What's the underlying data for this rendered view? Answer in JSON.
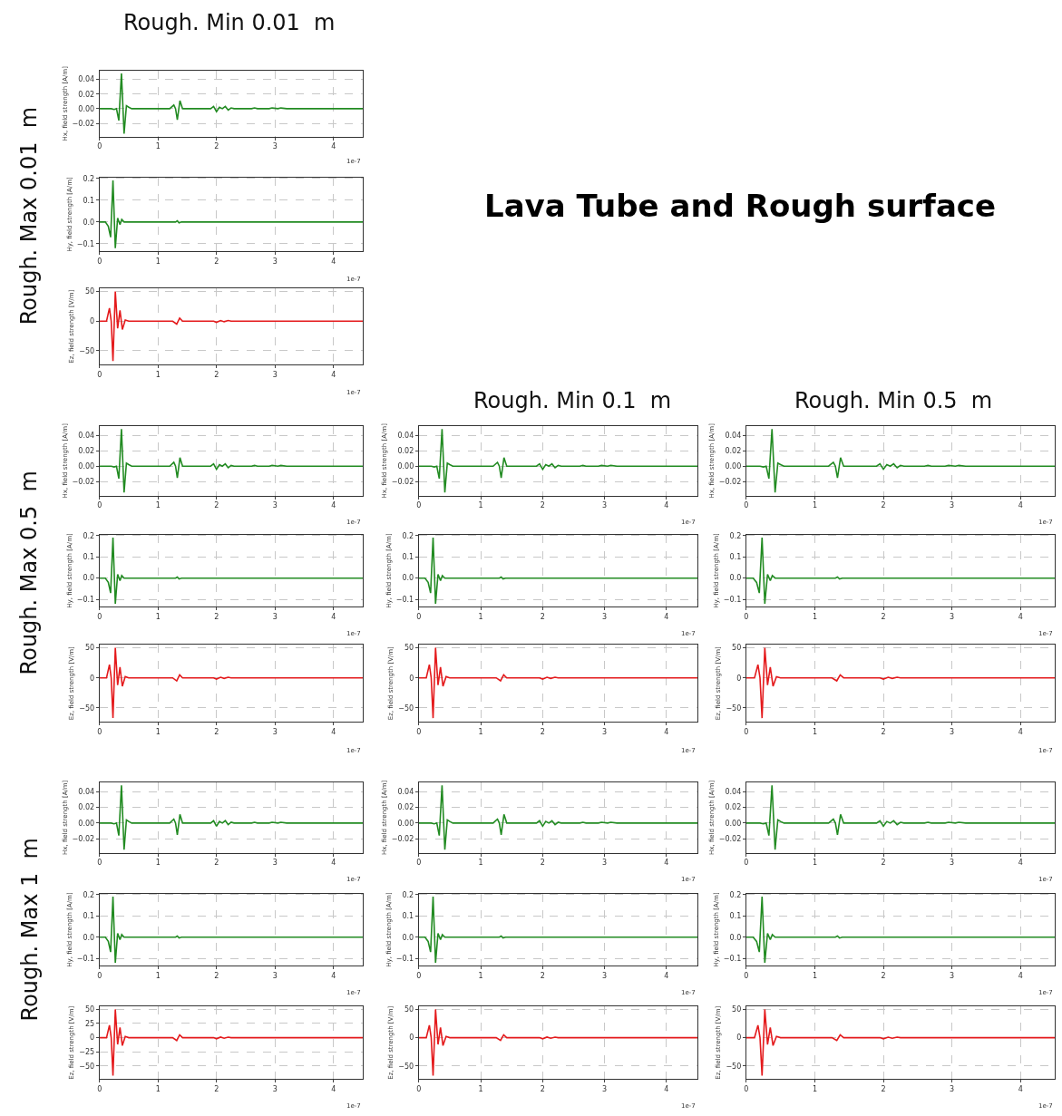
{
  "chart_data": [
    {
      "type": "other",
      "title": "Lava Tube and Rough surface",
      "annotations": [
        "Rough. Min 0.01  m",
        "Rough. Min 0.1  m",
        "Rough. Min 0.5  m",
        "Rough. Max 0.01  m",
        "Rough. Max 0.5  m",
        "Rough. Max 1  m"
      ]
    },
    {
      "type": "line",
      "ylabel": "Hx, field strength [A/m]",
      "x": [
        0,
        0.2,
        0.25,
        0.29,
        0.33,
        0.375,
        0.42,
        0.46,
        0.5,
        0.55,
        1.2,
        1.27,
        1.3,
        1.33,
        1.375,
        1.42,
        1.5,
        1.9,
        1.95,
        2.0,
        2.05,
        2.1,
        2.15,
        2.2,
        2.25,
        2.3,
        2.6,
        2.65,
        2.7,
        2.9,
        2.95,
        3.05,
        3.1,
        3.2,
        4.5
      ],
      "xlim": [
        0,
        4.5
      ],
      "xticks": [
        0,
        1,
        2,
        3,
        4
      ],
      "ylim": [
        -0.038,
        0.052
      ],
      "yticks": [
        {
          "value": -0.02,
          "label": "−0.02"
        },
        {
          "value": 0,
          "label": "0.00"
        },
        {
          "value": 0.02,
          "label": "0.02"
        },
        {
          "value": 0.04,
          "label": "0.04"
        }
      ],
      "grid": true,
      "line_style": "solid",
      "annotations": [
        "1e-7"
      ],
      "series": [
        {
          "color": "#228b22",
          "values": [
            0,
            0,
            -0.001,
            0,
            -0.016,
            0.048,
            -0.034,
            0.004,
            0.002,
            0,
            0,
            0.005,
            0,
            -0.015,
            0.011,
            0,
            0,
            0,
            0.003,
            -0.004,
            0.002,
            0,
            0.003,
            -0.002,
            0.001,
            0,
            0,
            0.001,
            0,
            0,
            0.001,
            0,
            0.001,
            0,
            0
          ]
        }
      ]
    },
    {
      "type": "line",
      "ylabel": "Hy, field strength [A/m]",
      "x": [
        0,
        0.1,
        0.15,
        0.19,
        0.23,
        0.27,
        0.31,
        0.35,
        0.38,
        0.42,
        0.46,
        1.3,
        1.33,
        1.36,
        1.4,
        4.5
      ],
      "xlim": [
        0,
        4.5
      ],
      "xticks": [
        0,
        1,
        2,
        3,
        4
      ],
      "ylim": [
        -0.135,
        0.205
      ],
      "yticks": [
        {
          "value": -0.1,
          "label": "−0.1"
        },
        {
          "value": 0,
          "label": "0.0"
        },
        0.1,
        0.2
      ],
      "grid": true,
      "line_style": "solid",
      "annotations": [
        "1e-7"
      ],
      "series": [
        {
          "color": "#228b22",
          "values": [
            0,
            0,
            -0.02,
            -0.07,
            0.19,
            -0.12,
            0.018,
            -0.012,
            0.012,
            0,
            0,
            0,
            0.005,
            -0.004,
            0,
            0
          ]
        }
      ]
    },
    {
      "type": "line",
      "ylabel": "Ez, field strength [V/m]",
      "x": [
        0,
        0.12,
        0.17,
        0.2,
        0.23,
        0.27,
        0.31,
        0.35,
        0.39,
        0.44,
        0.5,
        1.25,
        1.32,
        1.37,
        1.42,
        1.95,
        2.0,
        2.07,
        2.13,
        2.2,
        2.25,
        4.5
      ],
      "xlim": [
        0,
        4.5
      ],
      "xticks": [
        0,
        1,
        2,
        3,
        4
      ],
      "ylim": [
        -73,
        55
      ],
      "yticks": [
        {
          "value": -50,
          "label": "−50"
        },
        0,
        50
      ],
      "grid": true,
      "line_style": "solid",
      "annotations": [
        "1e-7"
      ],
      "series": [
        {
          "color": "#e41a1c",
          "values": [
            0,
            0,
            22,
            0,
            -67,
            50,
            -12,
            18,
            -14,
            2,
            0,
            0,
            -5,
            5,
            0,
            0,
            -2,
            1,
            -1,
            1,
            0,
            0
          ]
        }
      ]
    },
    {
      "type": "line",
      "ylabel": "Hx, field strength [A/m]",
      "x": [
        0,
        0.2,
        0.25,
        0.29,
        0.33,
        0.375,
        0.42,
        0.46,
        0.5,
        0.55,
        1.2,
        1.27,
        1.3,
        1.33,
        1.375,
        1.42,
        1.5,
        1.9,
        1.95,
        2.0,
        2.05,
        2.1,
        2.15,
        2.2,
        2.25,
        2.3,
        2.6,
        2.65,
        2.7,
        2.9,
        2.95,
        3.05,
        3.1,
        3.2,
        4.5
      ],
      "xlim": [
        0,
        4.5
      ],
      "xticks": [
        0,
        1,
        2,
        3,
        4
      ],
      "ylim": [
        -0.038,
        0.052
      ],
      "yticks": [
        {
          "value": -0.02,
          "label": "−0.02"
        },
        {
          "value": 0,
          "label": "0.00"
        },
        {
          "value": 0.02,
          "label": "0.02"
        },
        {
          "value": 0.04,
          "label": "0.04"
        }
      ],
      "grid": true,
      "line_style": "solid",
      "annotations": [
        "1e-7"
      ],
      "series": [
        {
          "color": "#228b22",
          "values": [
            0,
            0,
            -0.001,
            0,
            -0.016,
            0.048,
            -0.034,
            0.004,
            0.002,
            0,
            0,
            0.005,
            0,
            -0.015,
            0.011,
            0,
            0,
            0,
            0.003,
            -0.004,
            0.002,
            0,
            0.003,
            -0.002,
            0.001,
            0,
            0,
            0.001,
            0,
            0,
            0.001,
            0,
            0.001,
            0,
            0
          ]
        }
      ]
    },
    {
      "type": "line",
      "ylabel": "Hy, field strength [A/m]",
      "x": [
        0,
        0.1,
        0.15,
        0.19,
        0.23,
        0.27,
        0.31,
        0.35,
        0.38,
        0.42,
        0.46,
        1.3,
        1.33,
        1.36,
        1.4,
        4.5
      ],
      "xlim": [
        0,
        4.5
      ],
      "xticks": [
        0,
        1,
        2,
        3,
        4
      ],
      "ylim": [
        -0.135,
        0.205
      ],
      "yticks": [
        {
          "value": -0.1,
          "label": "−0.1"
        },
        {
          "value": 0,
          "label": "0.0"
        },
        0.1,
        0.2
      ],
      "grid": true,
      "line_style": "solid",
      "annotations": [
        "1e-7"
      ],
      "series": [
        {
          "color": "#228b22",
          "values": [
            0,
            0,
            -0.02,
            -0.07,
            0.19,
            -0.12,
            0.018,
            -0.012,
            0.012,
            0,
            0,
            0,
            0.005,
            -0.004,
            0,
            0
          ]
        }
      ]
    },
    {
      "type": "line",
      "ylabel": "Ez, field strength [V/m]",
      "x": [
        0,
        0.12,
        0.17,
        0.2,
        0.23,
        0.27,
        0.31,
        0.35,
        0.39,
        0.44,
        0.5,
        1.25,
        1.32,
        1.37,
        1.42,
        1.95,
        2.0,
        2.07,
        2.13,
        2.2,
        2.25,
        4.5
      ],
      "xlim": [
        0,
        4.5
      ],
      "xticks": [
        0,
        1,
        2,
        3,
        4
      ],
      "ylim": [
        -73,
        55
      ],
      "yticks": [
        {
          "value": -50,
          "label": "−50"
        },
        0,
        50
      ],
      "grid": true,
      "line_style": "solid",
      "annotations": [
        "1e-7"
      ],
      "series": [
        {
          "color": "#e41a1c",
          "values": [
            0,
            0,
            22,
            0,
            -67,
            50,
            -12,
            18,
            -14,
            2,
            0,
            0,
            -5,
            5,
            0,
            0,
            -2,
            1,
            -1,
            1,
            0,
            0
          ]
        }
      ]
    },
    {
      "type": "line",
      "ylabel": "Hx, field strength [A/m]",
      "x": [
        0,
        0.2,
        0.25,
        0.29,
        0.33,
        0.375,
        0.42,
        0.46,
        0.5,
        0.55,
        1.2,
        1.27,
        1.3,
        1.33,
        1.375,
        1.42,
        1.5,
        1.9,
        1.95,
        2.0,
        2.05,
        2.1,
        2.15,
        2.2,
        2.25,
        2.3,
        2.6,
        2.65,
        2.7,
        2.9,
        2.95,
        3.05,
        3.1,
        3.2,
        4.5
      ],
      "xlim": [
        0,
        4.5
      ],
      "xticks": [
        0,
        1,
        2,
        3,
        4
      ],
      "ylim": [
        -0.038,
        0.052
      ],
      "yticks": [
        {
          "value": -0.02,
          "label": "−0.02"
        },
        {
          "value": 0,
          "label": "0.00"
        },
        {
          "value": 0.02,
          "label": "0.02"
        },
        {
          "value": 0.04,
          "label": "0.04"
        }
      ],
      "grid": true,
      "line_style": "solid",
      "annotations": [
        "1e-7"
      ],
      "series": [
        {
          "color": "#228b22",
          "values": [
            0,
            0,
            -0.001,
            0,
            -0.016,
            0.048,
            -0.034,
            0.004,
            0.002,
            0,
            0,
            0.005,
            0,
            -0.015,
            0.011,
            0,
            0,
            0,
            0.003,
            -0.004,
            0.002,
            0,
            0.003,
            -0.002,
            0.001,
            0,
            0,
            0.001,
            0,
            0,
            0.001,
            0,
            0.001,
            0,
            0
          ]
        }
      ]
    },
    {
      "type": "line",
      "ylabel": "Hy, field strength [A/m]",
      "x": [
        0,
        0.1,
        0.15,
        0.19,
        0.23,
        0.27,
        0.31,
        0.35,
        0.38,
        0.42,
        0.46,
        1.3,
        1.33,
        1.36,
        1.4,
        4.5
      ],
      "xlim": [
        0,
        4.5
      ],
      "xticks": [
        0,
        1,
        2,
        3,
        4
      ],
      "ylim": [
        -0.135,
        0.205
      ],
      "yticks": [
        {
          "value": -0.1,
          "label": "−0.1"
        },
        {
          "value": 0,
          "label": "0.0"
        },
        0.1,
        0.2
      ],
      "grid": true,
      "line_style": "solid",
      "annotations": [
        "1e-7"
      ],
      "series": [
        {
          "color": "#228b22",
          "values": [
            0,
            0,
            -0.02,
            -0.07,
            0.19,
            -0.12,
            0.018,
            -0.012,
            0.012,
            0,
            0,
            0,
            0.005,
            -0.004,
            0,
            0
          ]
        }
      ]
    },
    {
      "type": "line",
      "ylabel": "Ez, field strength [V/m]",
      "x": [
        0,
        0.12,
        0.17,
        0.2,
        0.23,
        0.27,
        0.31,
        0.35,
        0.39,
        0.44,
        0.5,
        1.25,
        1.32,
        1.37,
        1.42,
        1.95,
        2.0,
        2.07,
        2.13,
        2.2,
        2.25,
        4.5
      ],
      "xlim": [
        0,
        4.5
      ],
      "xticks": [
        0,
        1,
        2,
        3,
        4
      ],
      "ylim": [
        -73,
        55
      ],
      "yticks": [
        {
          "value": -50,
          "label": "−50"
        },
        0,
        50
      ],
      "grid": true,
      "line_style": "solid",
      "annotations": [
        "1e-7"
      ],
      "series": [
        {
          "color": "#e41a1c",
          "values": [
            0,
            0,
            22,
            0,
            -67,
            50,
            -12,
            18,
            -14,
            2,
            0,
            0,
            -5,
            5,
            0,
            0,
            -2,
            1,
            -1,
            1,
            0,
            0
          ]
        }
      ]
    },
    {
      "type": "line",
      "ylabel": "Hx, field strength [A/m]",
      "x": [
        0,
        0.2,
        0.25,
        0.29,
        0.33,
        0.375,
        0.42,
        0.46,
        0.5,
        0.55,
        1.2,
        1.27,
        1.3,
        1.33,
        1.375,
        1.42,
        1.5,
        1.9,
        1.95,
        2.0,
        2.05,
        2.1,
        2.15,
        2.2,
        2.25,
        2.3,
        2.6,
        2.65,
        2.7,
        2.9,
        2.95,
        3.05,
        3.1,
        3.2,
        4.5
      ],
      "xlim": [
        0,
        4.5
      ],
      "xticks": [
        0,
        1,
        2,
        3,
        4
      ],
      "ylim": [
        -0.038,
        0.052
      ],
      "yticks": [
        {
          "value": -0.02,
          "label": "−0.02"
        },
        {
          "value": 0,
          "label": "0.00"
        },
        {
          "value": 0.02,
          "label": "0.02"
        },
        {
          "value": 0.04,
          "label": "0.04"
        }
      ],
      "grid": true,
      "line_style": "solid",
      "annotations": [
        "1e-7"
      ],
      "series": [
        {
          "color": "#228b22",
          "values": [
            0,
            0,
            -0.001,
            0,
            -0.016,
            0.048,
            -0.034,
            0.004,
            0.002,
            0,
            0,
            0.005,
            0,
            -0.015,
            0.011,
            0,
            0,
            0,
            0.003,
            -0.004,
            0.002,
            0,
            0.003,
            -0.002,
            0.001,
            0,
            0,
            0.001,
            0,
            0,
            0.001,
            0,
            0.001,
            0,
            0
          ]
        }
      ]
    },
    {
      "type": "line",
      "ylabel": "Hy, field strength [A/m]",
      "x": [
        0,
        0.1,
        0.15,
        0.19,
        0.23,
        0.27,
        0.31,
        0.35,
        0.38,
        0.42,
        0.46,
        1.3,
        1.33,
        1.36,
        1.4,
        4.5
      ],
      "xlim": [
        0,
        4.5
      ],
      "xticks": [
        0,
        1,
        2,
        3,
        4
      ],
      "ylim": [
        -0.135,
        0.205
      ],
      "yticks": [
        {
          "value": -0.1,
          "label": "−0.1"
        },
        {
          "value": 0,
          "label": "0.0"
        },
        0.1,
        0.2
      ],
      "grid": true,
      "line_style": "solid",
      "annotations": [
        "1e-7"
      ],
      "series": [
        {
          "color": "#228b22",
          "values": [
            0,
            0,
            -0.02,
            -0.07,
            0.19,
            -0.12,
            0.018,
            -0.012,
            0.012,
            0,
            0,
            0,
            0.005,
            -0.004,
            0,
            0
          ]
        }
      ]
    },
    {
      "type": "line",
      "ylabel": "Ez, field strength [V/m]",
      "x": [
        0,
        0.12,
        0.17,
        0.2,
        0.23,
        0.27,
        0.31,
        0.35,
        0.39,
        0.44,
        0.5,
        1.25,
        1.32,
        1.37,
        1.42,
        1.95,
        2.0,
        2.07,
        2.13,
        2.2,
        2.25,
        4.5
      ],
      "xlim": [
        0,
        4.5
      ],
      "xticks": [
        0,
        1,
        2,
        3,
        4
      ],
      "ylim": [
        -73,
        55
      ],
      "yticks": [
        {
          "value": -50,
          "label": "−50"
        },
        0,
        50
      ],
      "grid": true,
      "line_style": "solid",
      "annotations": [
        "1e-7"
      ],
      "series": [
        {
          "color": "#e41a1c",
          "values": [
            0,
            0,
            22,
            0,
            -67,
            50,
            -12,
            18,
            -14,
            2,
            0,
            0,
            -5,
            5,
            0,
            0,
            -2,
            1,
            -1,
            1,
            0,
            0
          ]
        }
      ]
    },
    {
      "type": "line",
      "ylabel": "Hx, field strength [A/m]",
      "x": [
        0,
        0.2,
        0.25,
        0.29,
        0.33,
        0.375,
        0.42,
        0.46,
        0.5,
        0.55,
        1.2,
        1.27,
        1.3,
        1.33,
        1.375,
        1.42,
        1.5,
        1.9,
        1.95,
        2.0,
        2.05,
        2.1,
        2.15,
        2.2,
        2.25,
        2.3,
        2.6,
        2.65,
        2.7,
        2.9,
        2.95,
        3.05,
        3.1,
        3.2,
        4.5
      ],
      "xlim": [
        0,
        4.5
      ],
      "xticks": [
        0,
        1,
        2,
        3,
        4
      ],
      "ylim": [
        -0.038,
        0.052
      ],
      "yticks": [
        {
          "value": -0.02,
          "label": "−0.02"
        },
        {
          "value": 0,
          "label": "0.00"
        },
        {
          "value": 0.02,
          "label": "0.02"
        },
        {
          "value": 0.04,
          "label": "0.04"
        }
      ],
      "grid": true,
      "line_style": "solid",
      "annotations": [
        "1e-7"
      ],
      "series": [
        {
          "color": "#228b22",
          "values": [
            0,
            0,
            -0.001,
            0,
            -0.016,
            0.048,
            -0.034,
            0.004,
            0.002,
            0,
            0,
            0.005,
            0,
            -0.015,
            0.011,
            0,
            0,
            0,
            0.003,
            -0.004,
            0.002,
            0,
            0.003,
            -0.002,
            0.001,
            0,
            0,
            0.001,
            0,
            0,
            0.001,
            0,
            0.001,
            0,
            0
          ]
        }
      ]
    },
    {
      "type": "line",
      "ylabel": "Hy, field strength [A/m]",
      "x": [
        0,
        0.1,
        0.15,
        0.19,
        0.23,
        0.27,
        0.31,
        0.35,
        0.38,
        0.42,
        0.46,
        1.3,
        1.33,
        1.36,
        1.4,
        4.5
      ],
      "xlim": [
        0,
        4.5
      ],
      "xticks": [
        0,
        1,
        2,
        3,
        4
      ],
      "ylim": [
        -0.135,
        0.205
      ],
      "yticks": [
        {
          "value": -0.1,
          "label": "−0.1"
        },
        {
          "value": 0,
          "label": "0.0"
        },
        0.1,
        0.2
      ],
      "grid": true,
      "line_style": "solid",
      "annotations": [
        "1e-7"
      ],
      "series": [
        {
          "color": "#228b22",
          "values": [
            0,
            0,
            -0.02,
            -0.07,
            0.19,
            -0.12,
            0.018,
            -0.012,
            0.012,
            0,
            0,
            0,
            0.005,
            -0.004,
            0,
            0
          ]
        }
      ]
    },
    {
      "type": "line",
      "ylabel": "Ez, field strength [V/m]",
      "x": [
        0,
        0.12,
        0.17,
        0.2,
        0.23,
        0.27,
        0.31,
        0.35,
        0.39,
        0.44,
        0.5,
        1.25,
        1.32,
        1.37,
        1.42,
        1.95,
        2.0,
        2.07,
        2.13,
        2.2,
        2.25,
        4.5
      ],
      "xlim": [
        0,
        4.5
      ],
      "xticks": [
        0,
        1,
        2,
        3,
        4
      ],
      "ylim": [
        -73,
        55
      ],
      "yticks": [
        {
          "value": -50,
          "label": "−50"
        },
        {
          "value": -25,
          "label": "−25"
        },
        0,
        25,
        50
      ],
      "grid": true,
      "line_style": "solid",
      "annotations": [
        "1e-7"
      ],
      "series": [
        {
          "color": "#e41a1c",
          "values": [
            0,
            0,
            22,
            0,
            -67,
            50,
            -12,
            18,
            -14,
            2,
            0,
            0,
            -5,
            5,
            0,
            0,
            -2,
            1,
            -1,
            1,
            0,
            0
          ]
        }
      ]
    },
    {
      "type": "line",
      "ylabel": "Hx, field strength [A/m]",
      "x": [
        0,
        0.2,
        0.25,
        0.29,
        0.33,
        0.375,
        0.42,
        0.46,
        0.5,
        0.55,
        1.2,
        1.27,
        1.3,
        1.33,
        1.375,
        1.42,
        1.5,
        1.9,
        1.95,
        2.0,
        2.05,
        2.1,
        2.15,
        2.2,
        2.25,
        2.3,
        2.6,
        2.65,
        2.7,
        2.9,
        2.95,
        3.05,
        3.1,
        3.2,
        4.5
      ],
      "xlim": [
        0,
        4.5
      ],
      "xticks": [
        0,
        1,
        2,
        3,
        4
      ],
      "ylim": [
        -0.038,
        0.052
      ],
      "yticks": [
        {
          "value": -0.02,
          "label": "−0.02"
        },
        {
          "value": 0,
          "label": "0.00"
        },
        {
          "value": 0.02,
          "label": "0.02"
        },
        {
          "value": 0.04,
          "label": "0.04"
        }
      ],
      "grid": true,
      "line_style": "solid",
      "annotations": [
        "1e-7"
      ],
      "series": [
        {
          "color": "#228b22",
          "values": [
            0,
            0,
            -0.001,
            0,
            -0.016,
            0.048,
            -0.034,
            0.004,
            0.002,
            0,
            0,
            0.005,
            0,
            -0.015,
            0.011,
            0,
            0,
            0,
            0.003,
            -0.004,
            0.002,
            0,
            0.003,
            -0.002,
            0.001,
            0,
            0,
            0.001,
            0,
            0,
            0.001,
            0,
            0.001,
            0,
            0
          ]
        }
      ]
    },
    {
      "type": "line",
      "ylabel": "Hy, field strength [A/m]",
      "x": [
        0,
        0.1,
        0.15,
        0.19,
        0.23,
        0.27,
        0.31,
        0.35,
        0.38,
        0.42,
        0.46,
        1.3,
        1.33,
        1.36,
        1.4,
        4.5
      ],
      "xlim": [
        0,
        4.5
      ],
      "xticks": [
        0,
        1,
        2,
        3,
        4
      ],
      "ylim": [
        -0.135,
        0.205
      ],
      "yticks": [
        {
          "value": -0.1,
          "label": "−0.1"
        },
        {
          "value": 0,
          "label": "0.0"
        },
        0.1,
        0.2
      ],
      "grid": true,
      "line_style": "solid",
      "annotations": [
        "1e-7"
      ],
      "series": [
        {
          "color": "#228b22",
          "values": [
            0,
            0,
            -0.02,
            -0.07,
            0.19,
            -0.12,
            0.018,
            -0.012,
            0.012,
            0,
            0,
            0,
            0.005,
            -0.004,
            0,
            0
          ]
        }
      ]
    },
    {
      "type": "line",
      "ylabel": "Ez, field strength [V/m]",
      "x": [
        0,
        0.12,
        0.17,
        0.2,
        0.23,
        0.27,
        0.31,
        0.35,
        0.39,
        0.44,
        0.5,
        1.25,
        1.32,
        1.37,
        1.42,
        1.95,
        2.0,
        2.07,
        2.13,
        2.2,
        2.25,
        4.5
      ],
      "xlim": [
        0,
        4.5
      ],
      "xticks": [
        0,
        1,
        2,
        3,
        4
      ],
      "ylim": [
        -73,
        55
      ],
      "yticks": [
        {
          "value": -50,
          "label": "−50"
        },
        0,
        50
      ],
      "grid": true,
      "line_style": "solid",
      "annotations": [
        "1e-7"
      ],
      "series": [
        {
          "color": "#e41a1c",
          "values": [
            0,
            0,
            22,
            0,
            -67,
            50,
            -12,
            18,
            -14,
            2,
            0,
            0,
            -5,
            5,
            0,
            0,
            -2,
            1,
            -1,
            1,
            0,
            0
          ]
        }
      ]
    },
    {
      "type": "line",
      "ylabel": "Hx, field strength [A/m]",
      "x": [
        0,
        0.2,
        0.25,
        0.29,
        0.33,
        0.375,
        0.42,
        0.46,
        0.5,
        0.55,
        1.2,
        1.27,
        1.3,
        1.33,
        1.375,
        1.42,
        1.5,
        1.9,
        1.95,
        2.0,
        2.05,
        2.1,
        2.15,
        2.2,
        2.25,
        2.3,
        2.6,
        2.65,
        2.7,
        2.9,
        2.95,
        3.05,
        3.1,
        3.2,
        4.5
      ],
      "xlim": [
        0,
        4.5
      ],
      "xticks": [
        0,
        1,
        2,
        3,
        4
      ],
      "ylim": [
        -0.038,
        0.052
      ],
      "yticks": [
        {
          "value": -0.02,
          "label": "−0.02"
        },
        {
          "value": 0,
          "label": "0.00"
        },
        {
          "value": 0.02,
          "label": "0.02"
        },
        {
          "value": 0.04,
          "label": "0.04"
        }
      ],
      "grid": true,
      "line_style": "solid",
      "annotations": [
        "1e-7"
      ],
      "series": [
        {
          "color": "#228b22",
          "values": [
            0,
            0,
            -0.001,
            0,
            -0.016,
            0.048,
            -0.034,
            0.004,
            0.002,
            0,
            0,
            0.005,
            0,
            -0.015,
            0.011,
            0,
            0,
            0,
            0.003,
            -0.004,
            0.002,
            0,
            0.003,
            -0.002,
            0.001,
            0,
            0,
            0.001,
            0,
            0,
            0.001,
            0,
            0.001,
            0,
            0
          ]
        }
      ]
    },
    {
      "type": "line",
      "ylabel": "Hy, field strength [A/m]",
      "x": [
        0,
        0.1,
        0.15,
        0.19,
        0.23,
        0.27,
        0.31,
        0.35,
        0.38,
        0.42,
        0.46,
        1.3,
        1.33,
        1.36,
        1.4,
        4.5
      ],
      "xlim": [
        0,
        4.5
      ],
      "xticks": [
        0,
        1,
        2,
        3,
        4
      ],
      "ylim": [
        -0.135,
        0.205
      ],
      "yticks": [
        {
          "value": -0.1,
          "label": "−0.1"
        },
        {
          "value": 0,
          "label": "0.0"
        },
        0.1,
        0.2
      ],
      "grid": true,
      "line_style": "solid",
      "annotations": [
        "1e-7"
      ],
      "series": [
        {
          "color": "#228b22",
          "values": [
            0,
            0,
            -0.02,
            -0.07,
            0.19,
            -0.12,
            0.018,
            -0.012,
            0.012,
            0,
            0,
            0,
            0.005,
            -0.004,
            0,
            0
          ]
        }
      ]
    },
    {
      "type": "line",
      "ylabel": "Ez, field strength [V/m]",
      "x": [
        0,
        0.12,
        0.17,
        0.2,
        0.23,
        0.27,
        0.31,
        0.35,
        0.39,
        0.44,
        0.5,
        1.25,
        1.32,
        1.37,
        1.42,
        1.95,
        2.0,
        2.07,
        2.13,
        2.2,
        2.25,
        4.5
      ],
      "xlim": [
        0,
        4.5
      ],
      "xticks": [
        0,
        1,
        2,
        3,
        4
      ],
      "ylim": [
        -73,
        55
      ],
      "yticks": [
        {
          "value": -50,
          "label": "−50"
        },
        0,
        50
      ],
      "grid": true,
      "line_style": "solid",
      "annotations": [
        "1e-7"
      ],
      "series": [
        {
          "color": "#e41a1c",
          "values": [
            0,
            0,
            22,
            0,
            -67,
            50,
            -12,
            18,
            -14,
            2,
            0,
            0,
            -5,
            5,
            0,
            0,
            -2,
            1,
            -1,
            1,
            0,
            0
          ]
        }
      ]
    }
  ]
}
